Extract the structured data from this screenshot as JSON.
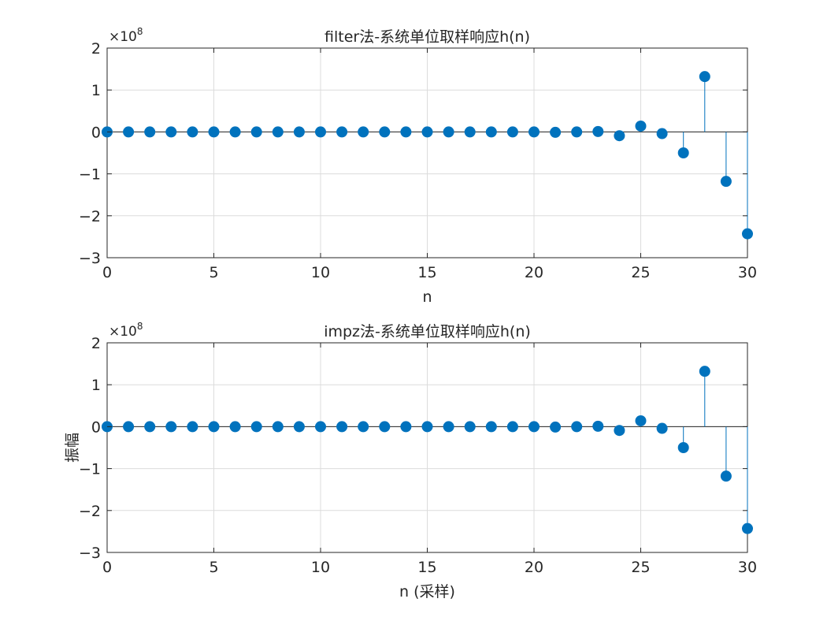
{
  "chart_data": [
    {
      "type": "stem",
      "title": "filter法-系统单位取样响应h(n)",
      "xlabel": "n",
      "ylabel": "",
      "y_exponent_label": "×10",
      "y_exponent_power": "8",
      "xlim": [
        0,
        30
      ],
      "ylim": [
        -3,
        2
      ],
      "xticks": [
        0,
        5,
        10,
        15,
        20,
        25,
        30
      ],
      "yticks": [
        -3,
        -2,
        -1,
        0,
        1,
        2
      ],
      "grid": true,
      "series": [
        {
          "color": "#0072BD",
          "x": [
            0,
            1,
            2,
            3,
            4,
            5,
            6,
            7,
            8,
            9,
            10,
            11,
            12,
            13,
            14,
            15,
            16,
            17,
            18,
            19,
            20,
            21,
            22,
            23,
            24,
            25,
            26,
            27,
            28,
            29,
            30
          ],
          "values": [
            0,
            0,
            0,
            0,
            0,
            0,
            0,
            0,
            0,
            0,
            0,
            0,
            0,
            0,
            0,
            0,
            0,
            0,
            0,
            0,
            0,
            -0.01,
            0,
            0.01,
            -0.09,
            0.14,
            -0.04,
            -0.5,
            1.32,
            -1.18,
            -2.43
          ]
        }
      ]
    },
    {
      "type": "stem",
      "title": "impz法-系统单位取样响应h(n)",
      "xlabel": "n (采样)",
      "ylabel": "振幅",
      "y_exponent_label": "×10",
      "y_exponent_power": "8",
      "xlim": [
        0,
        30
      ],
      "ylim": [
        -3,
        2
      ],
      "xticks": [
        0,
        5,
        10,
        15,
        20,
        25,
        30
      ],
      "yticks": [
        -3,
        -2,
        -1,
        0,
        1,
        2
      ],
      "grid": true,
      "series": [
        {
          "color": "#0072BD",
          "x": [
            0,
            1,
            2,
            3,
            4,
            5,
            6,
            7,
            8,
            9,
            10,
            11,
            12,
            13,
            14,
            15,
            16,
            17,
            18,
            19,
            20,
            21,
            22,
            23,
            24,
            25,
            26,
            27,
            28,
            29,
            30
          ],
          "values": [
            0,
            0,
            0,
            0,
            0,
            0,
            0,
            0,
            0,
            0,
            0,
            0,
            0,
            0,
            0,
            0,
            0,
            0,
            0,
            0,
            0,
            -0.01,
            0,
            0.01,
            -0.09,
            0.14,
            -0.04,
            -0.5,
            1.32,
            -1.18,
            -2.43
          ]
        }
      ]
    }
  ]
}
